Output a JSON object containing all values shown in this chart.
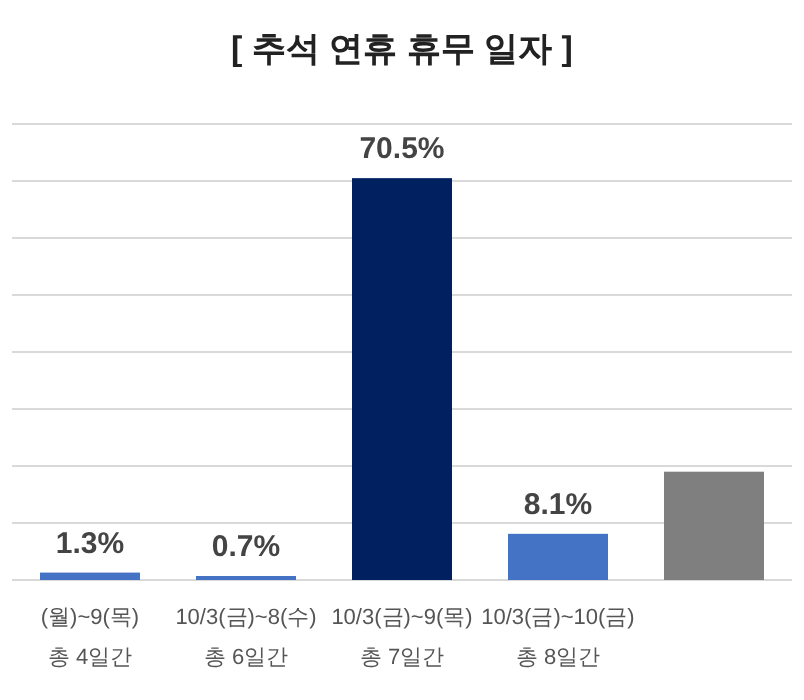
{
  "chart_data": {
    "type": "bar",
    "title": "[ 추석 연휴 휴무 일자 ]",
    "categories": [
      "(월)~9(목)\n총 4일간",
      "10/3(금)~8(수)\n총 6일간",
      "10/3(금)~9(목)\n총 7일간",
      "10/3(금)~10(금)\n총 8일간",
      null
    ],
    "values": [
      1.3,
      0.7,
      70.5,
      8.1,
      19
    ],
    "value_labels": [
      "1.3%",
      "0.7%",
      "70.5%",
      "8.1%",
      null
    ],
    "colors": [
      "#4472c4",
      "#4472c4",
      "#002060",
      "#4472c4",
      "#7f7f7f"
    ],
    "ylim": [
      0,
      80
    ],
    "yticks": [
      {
        "value": 0,
        "label": null
      },
      {
        "value": 10,
        "label": null
      },
      {
        "value": 20,
        "label": null
      },
      {
        "value": 30,
        "label": null
      },
      {
        "value": 40,
        "label": null
      },
      {
        "value": 50,
        "label": null
      },
      {
        "value": 60,
        "label": null
      },
      {
        "value": 70,
        "label": null
      },
      {
        "value": 80,
        "label": null
      }
    ],
    "grid": "y"
  }
}
